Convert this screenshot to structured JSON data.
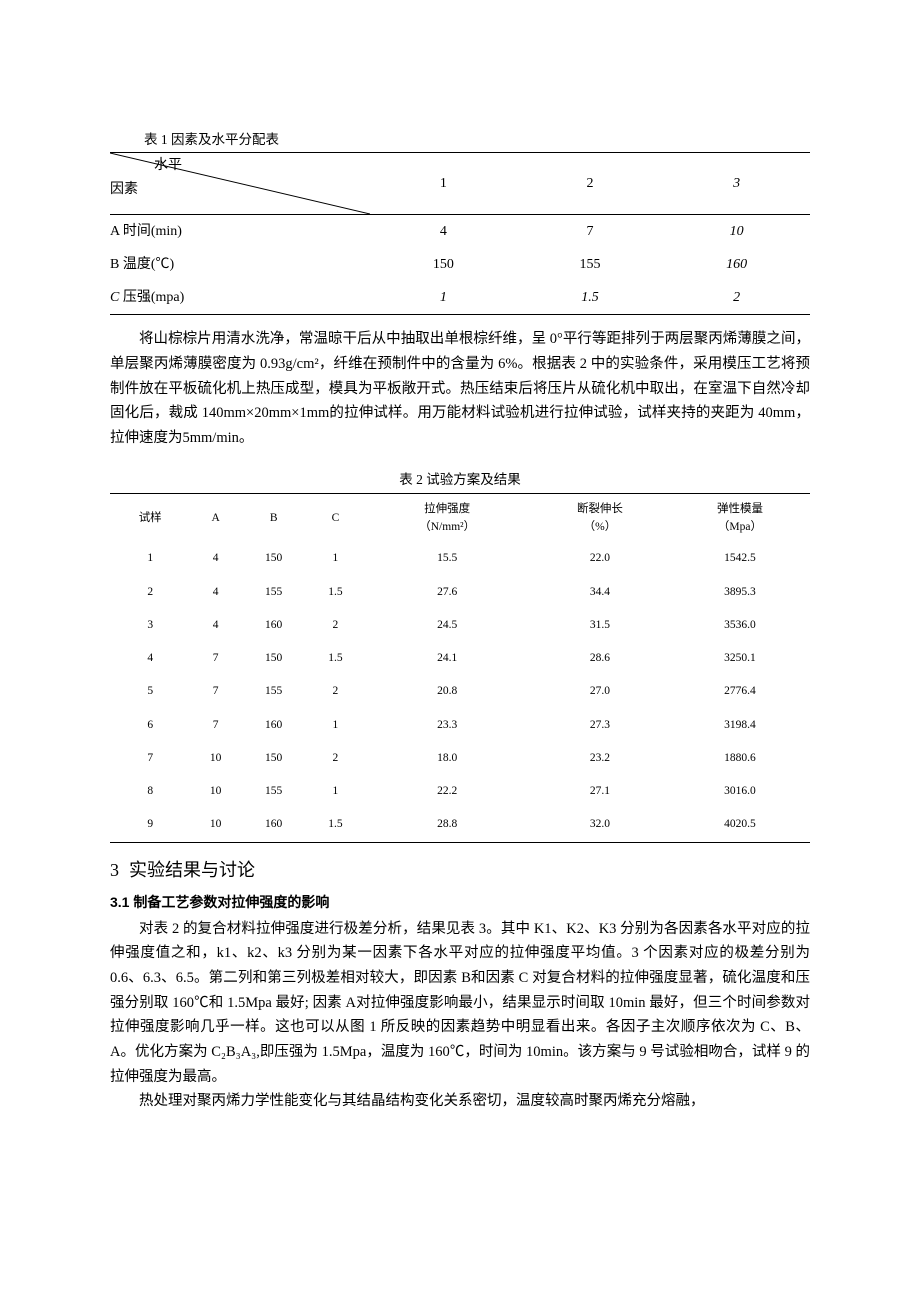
{
  "table1": {
    "caption": "表 1 因素及水平分配表",
    "diag_top": "水平",
    "diag_bot": "因素",
    "levels": [
      "1",
      "2",
      "3"
    ],
    "rows": [
      {
        "label": "A 时间(min)",
        "vals": [
          "4",
          "7",
          "10"
        ],
        "italic_last": true
      },
      {
        "label": "B 温度(℃)",
        "vals": [
          "150",
          "155",
          "160"
        ],
        "italic_last": true
      },
      {
        "label": "C 压强(mpa)",
        "vals": [
          "1",
          "1.5",
          "2"
        ],
        "italic_all": true,
        "italic_label_c": true
      }
    ]
  },
  "para1": "将山棕棕片用清水洗净，常温晾干后从中抽取出单根棕纤维，呈 0°平行等距排列于两层聚丙烯薄膜之间，单层聚丙烯薄膜密度为 0.93g/cm²，纤维在预制件中的含量为 6%。根据表 2 中的实验条件，采用模压工艺将预制件放在平板硫化机上热压成型，模具为平板敞开式。热压结束后将压片从硫化机中取出，在室温下自然冷却固化后，裁成 140mm×20mm×1mm的拉伸试样。用万能材料试验机进行拉伸试验，试样夹持的夹距为 40mm，拉伸速度为5mm/min。",
  "table2": {
    "caption": "表 2 试验方案及结果",
    "headers": {
      "sample": "试样",
      "A": "A",
      "B": "B",
      "C": "C",
      "tensile_l1": "拉伸强度",
      "tensile_l2": "（N/mm²）",
      "elong_l1": "断裂伸长",
      "elong_l2": "（%）",
      "modulus_l1": "弹性模量",
      "modulus_l2": "（Mpa）"
    },
    "rows": [
      [
        "1",
        "4",
        "150",
        "1",
        "15.5",
        "22.0",
        "1542.5"
      ],
      [
        "2",
        "4",
        "155",
        "1.5",
        "27.6",
        "34.4",
        "3895.3"
      ],
      [
        "3",
        "4",
        "160",
        "2",
        "24.5",
        "31.5",
        "3536.0"
      ],
      [
        "4",
        "7",
        "150",
        "1.5",
        "24.1",
        "28.6",
        "3250.1"
      ],
      [
        "5",
        "7",
        "155",
        "2",
        "20.8",
        "27.0",
        "2776.4"
      ],
      [
        "6",
        "7",
        "160",
        "1",
        "23.3",
        "27.3",
        "3198.4"
      ],
      [
        "7",
        "10",
        "150",
        "2",
        "18.0",
        "23.2",
        "1880.6"
      ],
      [
        "8",
        "10",
        "155",
        "1",
        "22.2",
        "27.1",
        "3016.0"
      ],
      [
        "9",
        "10",
        "160",
        "1.5",
        "28.8",
        "32.0",
        "4020.5"
      ]
    ]
  },
  "section": {
    "num": "3",
    "title": "实验结果与讨论"
  },
  "subsection": "3.1 制备工艺参数对拉伸强度的影响",
  "para2": "对表 2 的复合材料拉伸强度进行极差分析，结果见表 3。其中 K1、K2、K3 分别为各因素各水平对应的拉伸强度值之和，k1、k2、k3 分别为某一因素下各水平对应的拉伸强度平均值。3 个因素对应的极差分别为 0.6、6.3、6.5。第二列和第三列极差相对较大，即因素 B和因素 C 对复合材料的拉伸强度显著，硫化温度和压强分别取 160℃和 1.5Mpa 最好; 因素 A对拉伸强度影响最小，结果显示时间取 10min 最好，但三个时间参数对拉伸强度影响几乎一样。这也可以从图 1 所反映的因素趋势中明显看出来。各因子主次顺序依次为 C、B、A。优化方案为 C₂B₃A₃,即压强为 1.5Mpa，温度为 160℃，时间为 10min。该方案与 9 号试验相吻合，试样 9 的拉伸强度为最高。",
  "para3": "热处理对聚丙烯力学性能变化与其结晶结构变化关系密切，温度较高时聚丙烯充分熔融，"
}
